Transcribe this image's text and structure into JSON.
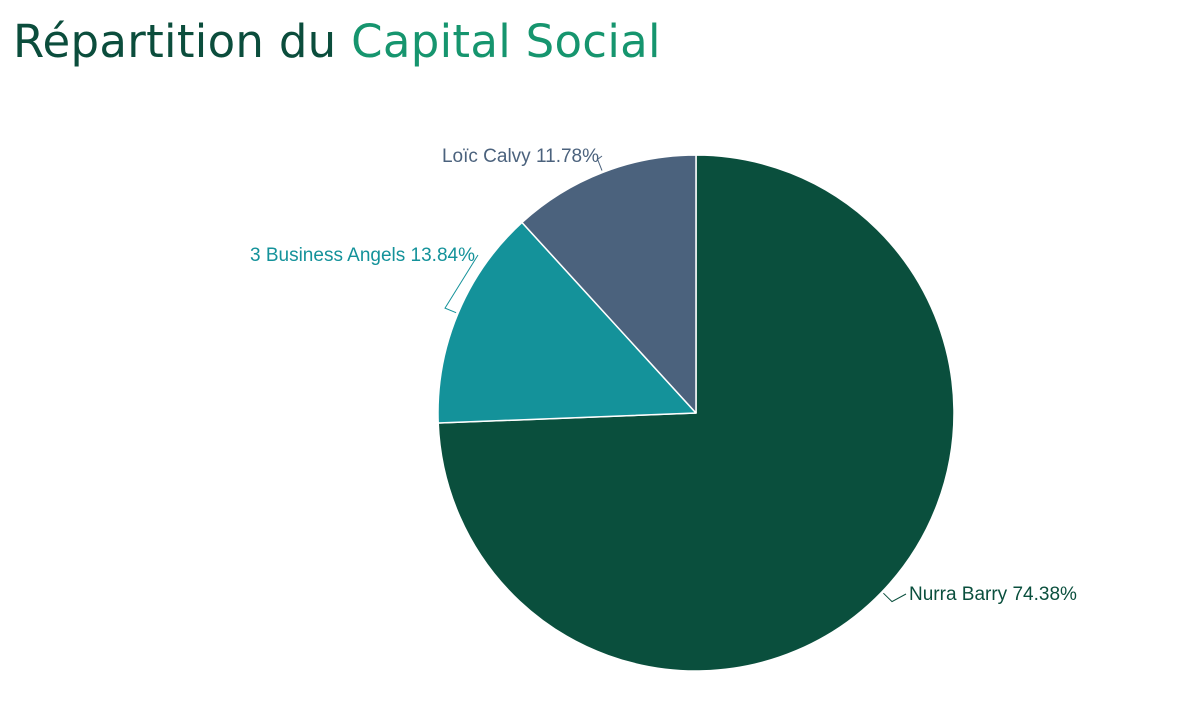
{
  "title": {
    "part1": "Répartition du",
    "part2": "Capital Social"
  },
  "colors": {
    "title_dark": "#0b4d3c",
    "title_accent": "#16956e"
  },
  "chart_data": {
    "type": "pie",
    "title": "Répartition du Capital Social",
    "slices": [
      {
        "label": "Nurra Barry 74.38%",
        "value": 74.38,
        "color": "#0a4f3d"
      },
      {
        "label": "3 Business Angels 13.84%",
        "value": 13.84,
        "color": "#14929a"
      },
      {
        "label": "Loïc Calvy 11.78%",
        "value": 11.78,
        "color": "#4b627d"
      }
    ],
    "start_angle_deg": 0,
    "direction": "clockwise",
    "legend": "none",
    "labels": "outside"
  }
}
